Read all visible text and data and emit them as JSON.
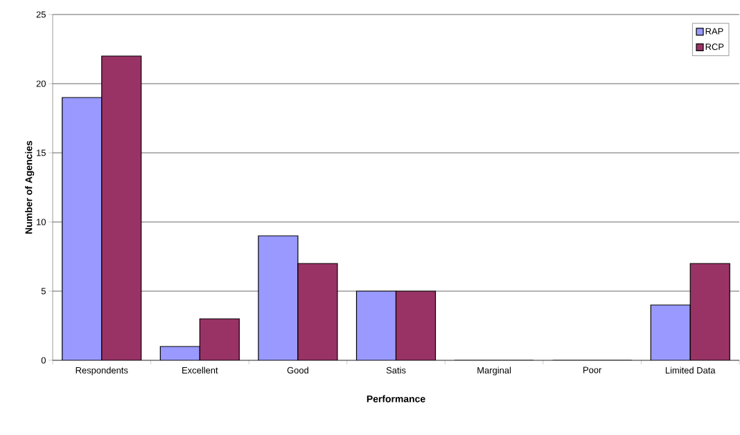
{
  "chart_data": {
    "type": "bar",
    "xlabel": "Performance",
    "ylabel": "Number of Agencies",
    "categories": [
      "Respondents",
      "Excellent",
      "Good",
      "Satis",
      "Marginal",
      "Poor",
      "Limited Data"
    ],
    "series": [
      {
        "name": "RAP",
        "color": "#9999ff",
        "values": [
          19,
          1,
          9,
          5,
          0,
          0,
          4
        ]
      },
      {
        "name": "RCP",
        "color": "#993366",
        "values": [
          22,
          3,
          7,
          5,
          0,
          0,
          7
        ]
      }
    ],
    "ylim": [
      0,
      25
    ],
    "yticks": [
      0,
      5,
      10,
      15,
      20,
      25
    ],
    "grid": "y",
    "legend": "top right"
  }
}
